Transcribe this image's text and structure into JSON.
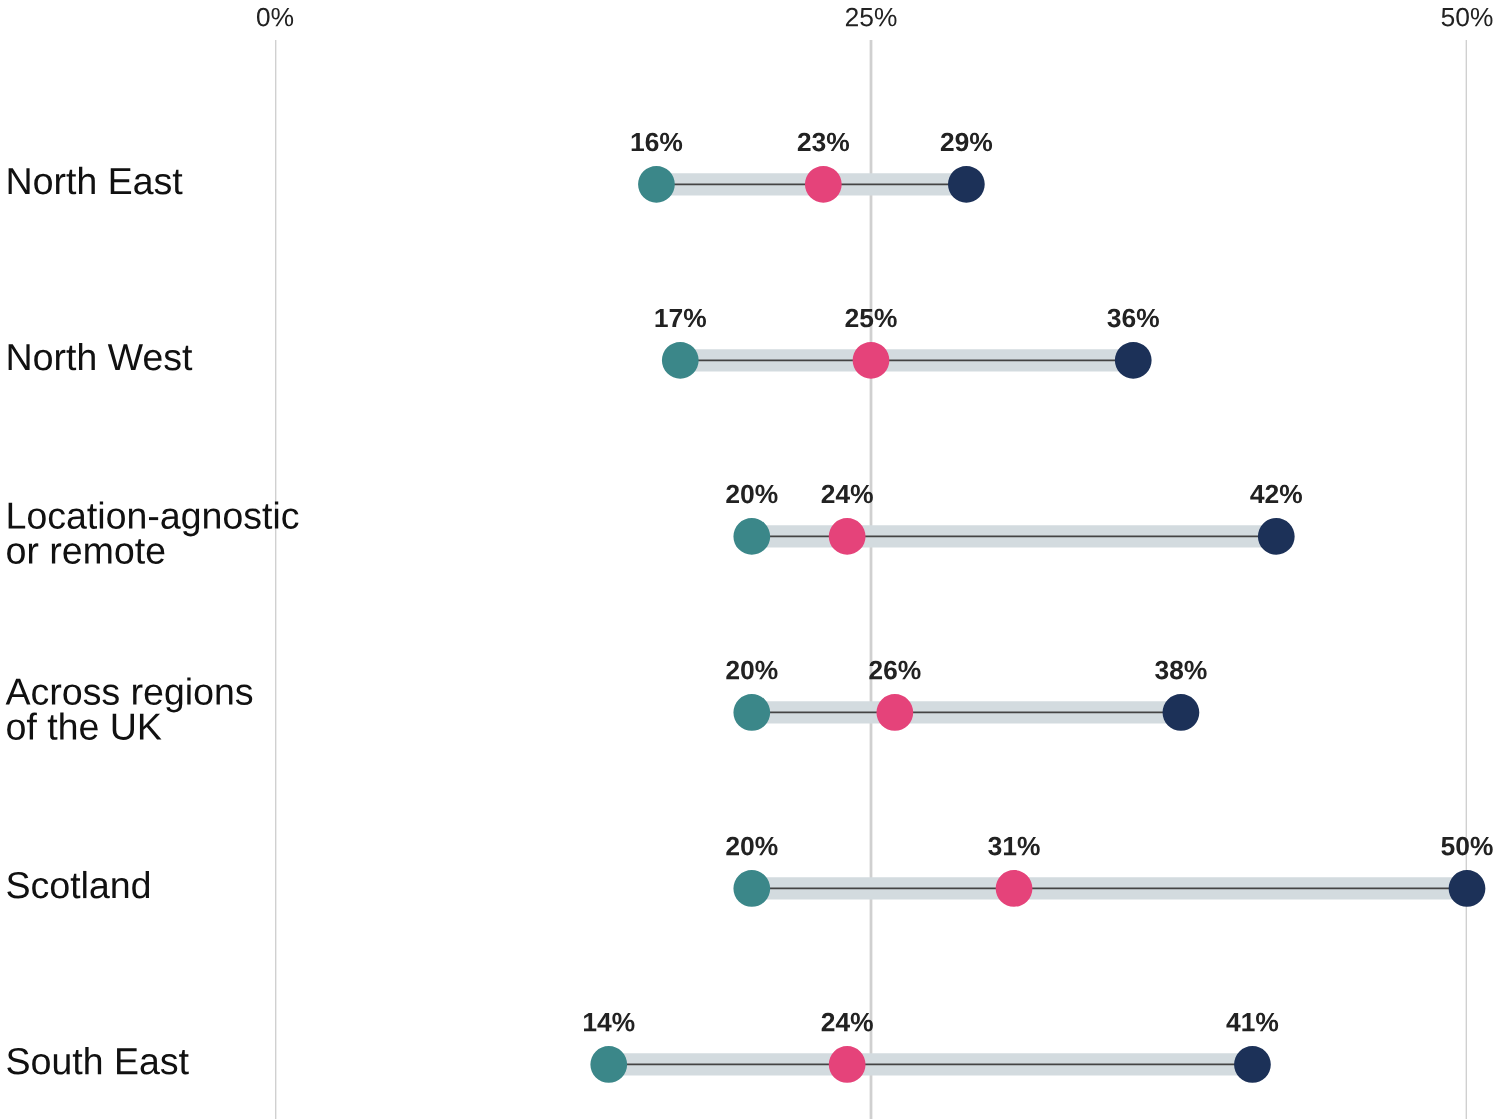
{
  "chart_data": {
    "type": "scatter",
    "orientation": "horizontal",
    "categories": [
      "North East",
      "North West",
      "Location-agnostic\nor remote",
      "Across regions\nof the UK",
      "Scotland",
      "South East"
    ],
    "series": [
      {
        "color": "#3b8789",
        "values": [
          16,
          17,
          20,
          20,
          20,
          14
        ],
        "value_labels": [
          "16%",
          "17%",
          "20%",
          "20%",
          "20%",
          "14%"
        ]
      },
      {
        "color": "#e5437a",
        "values": [
          23,
          25,
          24,
          26,
          31,
          24
        ],
        "value_labels": [
          "23%",
          "25%",
          "24%",
          "26%",
          "31%",
          "24%"
        ]
      },
      {
        "color": "#1c3158",
        "values": [
          29,
          36,
          42,
          38,
          50,
          41
        ],
        "value_labels": [
          "29%",
          "36%",
          "42%",
          "38%",
          "50%",
          "41%"
        ]
      }
    ],
    "xlim": [
      0,
      50
    ],
    "xticks": [
      {
        "value": 0,
        "label": "0%"
      },
      {
        "value": 25,
        "label": "25%"
      },
      {
        "value": 50,
        "label": "50%"
      }
    ],
    "grid": "x",
    "marker": "circle"
  }
}
